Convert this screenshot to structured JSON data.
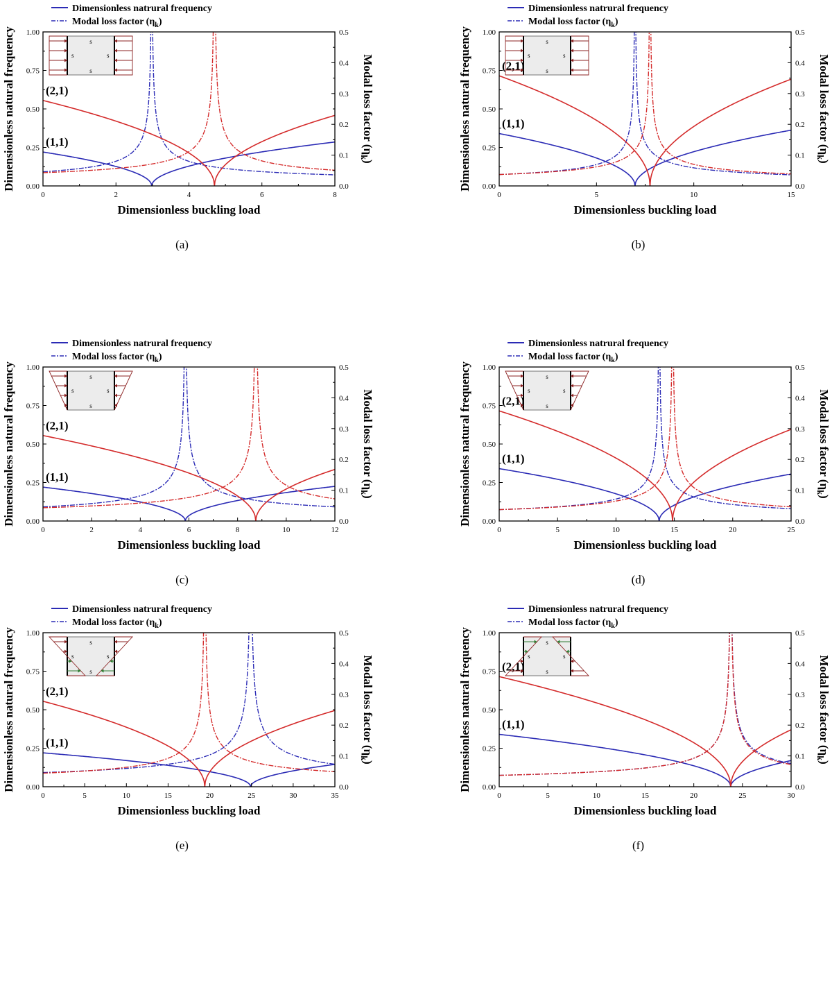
{
  "colors": {
    "mode11": "#2b2bb5",
    "mode21": "#d42b2b",
    "axis": "#000000",
    "diagram_arrow": "#8b2020",
    "diagram_arrow_tension": "#2e7d32",
    "diagram_fill": "#ececec"
  },
  "chart_data": [
    {
      "type": "line",
      "caption": "(a)",
      "legend": [
        "Dimensionless natrural frequency",
        "Modal loss factor (ηk)"
      ],
      "xlabel": "Dimensionless buckling load",
      "ylabel_left": "Dimensionless natural frequency",
      "ylabel_right": "Modal loss factor (ηk)",
      "xlim": [
        0,
        8
      ],
      "xticks": [
        "0",
        "2",
        "4",
        "6",
        "8"
      ],
      "ylim_left": [
        0,
        1
      ],
      "yticks_left": [
        "0.00",
        "0.25",
        "0.50",
        "0.75",
        "1.00"
      ],
      "ylim_right": [
        0,
        0.5
      ],
      "yticks_right": [
        "0.0",
        "0.1",
        "0.2",
        "0.3",
        "0.4",
        "0.5"
      ],
      "mode_labels": [
        "(1,1)",
        "(2,1)"
      ],
      "load_diagram": "uniform",
      "edge_label": "s",
      "series": [
        {
          "name": "(1,1)",
          "color": "mode11",
          "omega0": 0.22,
          "critical_load": 2.98,
          "end_freq": 0.285,
          "loss0": 0.046,
          "loss_end": 0.036
        },
        {
          "name": "(2,1)",
          "color": "mode21",
          "omega0": 0.555,
          "critical_load": 4.7,
          "end_freq": 0.458,
          "loss0": 0.043,
          "loss_end": 0.051
        }
      ]
    },
    {
      "type": "line",
      "caption": "(b)",
      "legend": [
        "Dimensionless natrural frequency",
        "Modal loss factor (ηk)"
      ],
      "xlabel": "Dimensionless buckling load",
      "ylabel_left": "Dimensionless natural frequency",
      "ylabel_right": "Modal loss factor (ηk)",
      "xlim": [
        0,
        15
      ],
      "xticks": [
        "0",
        "5",
        "10",
        "15"
      ],
      "ylim_left": [
        0,
        1
      ],
      "yticks_left": [
        "0.00",
        "0.25",
        "0.50",
        "0.75",
        "1.00"
      ],
      "ylim_right": [
        0,
        0.5
      ],
      "yticks_right": [
        "0.0",
        "0.1",
        "0.2",
        "0.3",
        "0.4",
        "0.5"
      ],
      "mode_labels": [
        "(1,1)",
        "(2,1)"
      ],
      "load_diagram": "uniform",
      "edge_label": "s",
      "series": [
        {
          "name": "(1,1)",
          "color": "mode11",
          "omega0": 0.34,
          "critical_load": 6.98,
          "end_freq": 0.362,
          "loss0": 0.037,
          "loss_end": 0.036
        },
        {
          "name": "(2,1)",
          "color": "mode21",
          "omega0": 0.715,
          "critical_load": 7.75,
          "end_freq": 0.693,
          "loss0": 0.037,
          "loss_end": 0.039
        }
      ]
    },
    {
      "type": "line",
      "caption": "(c)",
      "legend": [
        "Dimensionless natrural frequency",
        "Modal loss factor (ηk)"
      ],
      "xlabel": "Dimensionless buckling load",
      "ylabel_left": "Dimensionless natural frequency",
      "ylabel_right": "Modal loss factor (ηk)",
      "xlim": [
        0,
        12
      ],
      "xticks": [
        "0",
        "2",
        "4",
        "6",
        "8",
        "10",
        "12"
      ],
      "ylim_left": [
        0,
        1
      ],
      "yticks_left": [
        "0.00",
        "0.25",
        "0.50",
        "0.75",
        "1.00"
      ],
      "ylim_right": [
        0,
        0.5
      ],
      "yticks_right": [
        "0.0",
        "0.1",
        "0.2",
        "0.3",
        "0.4",
        "0.5"
      ],
      "mode_labels": [
        "(1,1)",
        "(2,1)"
      ],
      "load_diagram": "trapezoid",
      "edge_label": "s",
      "series": [
        {
          "name": "(1,1)",
          "color": "mode11",
          "omega0": 0.22,
          "critical_load": 5.85,
          "end_freq": 0.225,
          "loss0": 0.046,
          "loss_end": 0.046
        },
        {
          "name": "(2,1)",
          "color": "mode21",
          "omega0": 0.555,
          "critical_load": 8.75,
          "end_freq": 0.335,
          "loss0": 0.043,
          "loss_end": 0.072
        }
      ]
    },
    {
      "type": "line",
      "caption": "(d)",
      "legend": [
        "Dimensionless natrural frequency",
        "Modal loss factor (ηk)"
      ],
      "xlabel": "Dimensionless buckling load",
      "ylabel_left": "Dimensionless natural frequency",
      "ylabel_right": "Modal loss factor (ηk)",
      "xlim": [
        0,
        25
      ],
      "xticks": [
        "0",
        "5",
        "10",
        "15",
        "20",
        "25"
      ],
      "ylim_left": [
        0,
        1
      ],
      "yticks_left": [
        "0.00",
        "0.25",
        "0.50",
        "0.75",
        "1.00"
      ],
      "ylim_right": [
        0,
        0.5
      ],
      "yticks_right": [
        "0.0",
        "0.1",
        "0.2",
        "0.3",
        "0.4",
        "0.5"
      ],
      "mode_labels": [
        "(1,1)",
        "(2,1)"
      ],
      "load_diagram": "trapezoid",
      "edge_label": "s",
      "series": [
        {
          "name": "(1,1)",
          "color": "mode11",
          "omega0": 0.34,
          "critical_load": 13.7,
          "end_freq": 0.305,
          "loss0": 0.037,
          "loss_end": 0.04
        },
        {
          "name": "(2,1)",
          "color": "mode21",
          "omega0": 0.715,
          "critical_load": 14.85,
          "end_freq": 0.595,
          "loss0": 0.037,
          "loss_end": 0.046
        }
      ]
    },
    {
      "type": "line",
      "caption": "(e)",
      "legend": [
        "Dimensionless natrural frequency",
        "Modal loss factor (ηk)"
      ],
      "xlabel": "Dimensionless buckling load",
      "ylabel_left": "Dimensionless natural frequency",
      "ylabel_right": "Modal loss factor (ηk)",
      "xlim": [
        0,
        35
      ],
      "xticks": [
        "0",
        "5",
        "10",
        "15",
        "20",
        "25",
        "30",
        "35"
      ],
      "ylim_left": [
        0,
        1
      ],
      "yticks_left": [
        "0.00",
        "0.25",
        "0.50",
        "0.75",
        "1.00"
      ],
      "ylim_right": [
        0,
        0.5
      ],
      "yticks_right": [
        "0.0",
        "0.1",
        "0.2",
        "0.3",
        "0.4",
        "0.5"
      ],
      "mode_labels": [
        "(1,1)",
        "(2,1)"
      ],
      "load_diagram": "bending",
      "edge_label": "s",
      "series": [
        {
          "name": "(1,1)",
          "color": "mode11",
          "omega0": 0.22,
          "critical_load": 24.9,
          "end_freq": 0.145,
          "loss0": 0.046,
          "loss_end": 0.073
        },
        {
          "name": "(2,1)",
          "color": "mode21",
          "omega0": 0.555,
          "critical_load": 19.4,
          "end_freq": 0.495,
          "loss0": 0.044,
          "loss_end": 0.049
        }
      ]
    },
    {
      "type": "line",
      "caption": "(f)",
      "legend": [
        "Dimensionless natrural frequency",
        "Modal loss factor (ηk)"
      ],
      "xlabel": "Dimensionless buckling load",
      "ylabel_left": "Dimensionless natural frequency",
      "ylabel_right": "Modal loss factor (ηk)",
      "xlim": [
        0,
        30
      ],
      "xticks": [
        "0",
        "5",
        "10",
        "15",
        "20",
        "25",
        "30"
      ],
      "ylim_left": [
        0,
        1
      ],
      "yticks_left": [
        "0.00",
        "0.25",
        "0.50",
        "0.75",
        "1.00"
      ],
      "ylim_right": [
        0,
        0.5
      ],
      "yticks_right": [
        "0.0",
        "0.1",
        "0.2",
        "0.3",
        "0.4",
        "0.5"
      ],
      "mode_labels": [
        "(1,1)",
        "(2,1)"
      ],
      "load_diagram": "bending_reverse",
      "edge_label": "s",
      "series": [
        {
          "name": "(1,1)",
          "color": "mode11",
          "omega0": 0.34,
          "critical_load": 23.8,
          "end_freq": 0.17,
          "loss0": 0.037,
          "loss_end": 0.075
        },
        {
          "name": "(2,1)",
          "color": "mode21",
          "omega0": 0.715,
          "critical_load": 23.8,
          "end_freq": 0.37,
          "loss0": 0.037,
          "loss_end": 0.072
        }
      ]
    }
  ]
}
